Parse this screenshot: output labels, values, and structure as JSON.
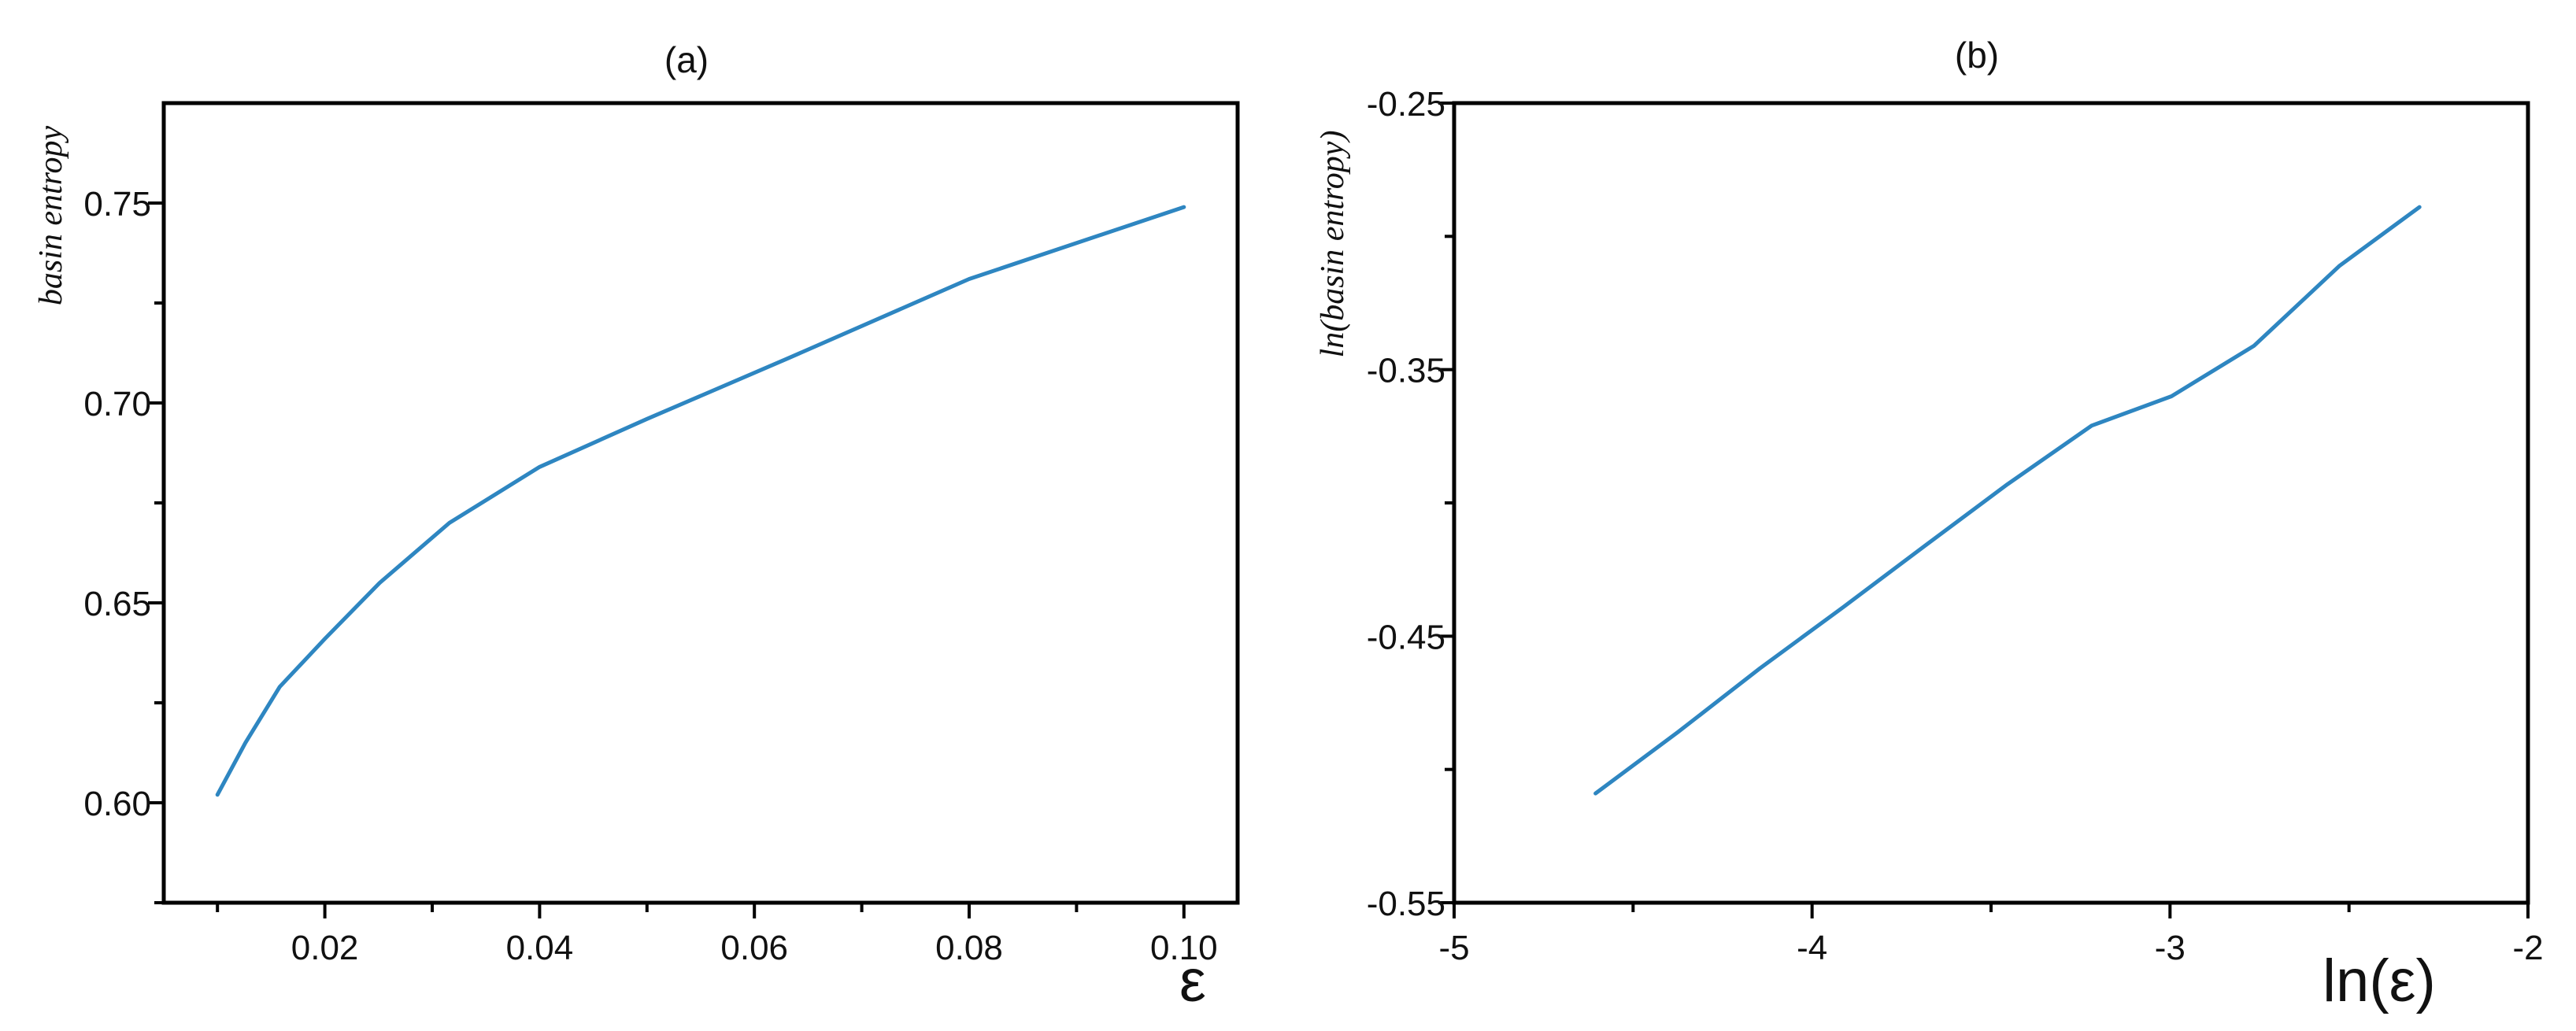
{
  "chart_data": [
    {
      "type": "line",
      "title": "(a)",
      "xlabel": "ε",
      "ylabel": "basin entropy",
      "xlim": [
        0.005,
        0.105
      ],
      "ylim": [
        0.575,
        0.775
      ],
      "x_ticks": [
        0.02,
        0.04,
        0.06,
        0.08,
        0.1
      ],
      "x_tick_labels": [
        "0.02",
        "0.04",
        "0.06",
        "0.08",
        "0.10"
      ],
      "x_minor_ticks": [
        0.01,
        0.03,
        0.05,
        0.07,
        0.09
      ],
      "y_ticks": [
        0.6,
        0.65,
        0.7,
        0.75
      ],
      "y_tick_labels": [
        "0.60",
        "0.65",
        "0.70",
        "0.75"
      ],
      "y_minor_ticks": [
        0.575,
        0.625,
        0.675,
        0.725
      ],
      "grid": false,
      "series": [
        {
          "color": "#2e86c1",
          "x": [
            0.01,
            0.0126,
            0.0158,
            0.02,
            0.0251,
            0.0316,
            0.04,
            0.05,
            0.063,
            0.08,
            0.1
          ],
          "y": [
            0.602,
            0.615,
            0.629,
            0.641,
            0.655,
            0.67,
            0.684,
            0.696,
            0.711,
            0.731,
            0.749
          ]
        }
      ]
    },
    {
      "type": "line",
      "title": "(b)",
      "xlabel": "ln(ε)",
      "ylabel": "ln(basin entropy)",
      "xlim": [
        -5,
        -2
      ],
      "ylim": [
        -0.55,
        -0.25
      ],
      "x_ticks": [
        -5,
        -4,
        -3,
        -2
      ],
      "x_tick_labels": [
        "-5",
        "-4",
        "-3",
        "-2"
      ],
      "x_minor_ticks": [
        -4.5,
        -3.5,
        -2.5
      ],
      "y_ticks": [
        -0.55,
        -0.45,
        -0.35,
        -0.25
      ],
      "y_tick_labels": [
        "-0.55",
        "-0.45",
        "-0.35",
        "-0.25"
      ],
      "y_minor_ticks": [
        -0.5,
        -0.4,
        -0.3
      ],
      "grid": false,
      "series": [
        {
          "color": "#2e86c1",
          "x": [
            -4.605,
            -4.375,
            -4.145,
            -3.912,
            -3.684,
            -3.454,
            -3.219,
            -2.996,
            -2.765,
            -2.526,
            -2.303
          ],
          "y": [
            -0.509,
            -0.486,
            -0.462,
            -0.439,
            -0.416,
            -0.393,
            -0.371,
            -0.36,
            -0.341,
            -0.311,
            -0.289
          ]
        }
      ]
    }
  ]
}
